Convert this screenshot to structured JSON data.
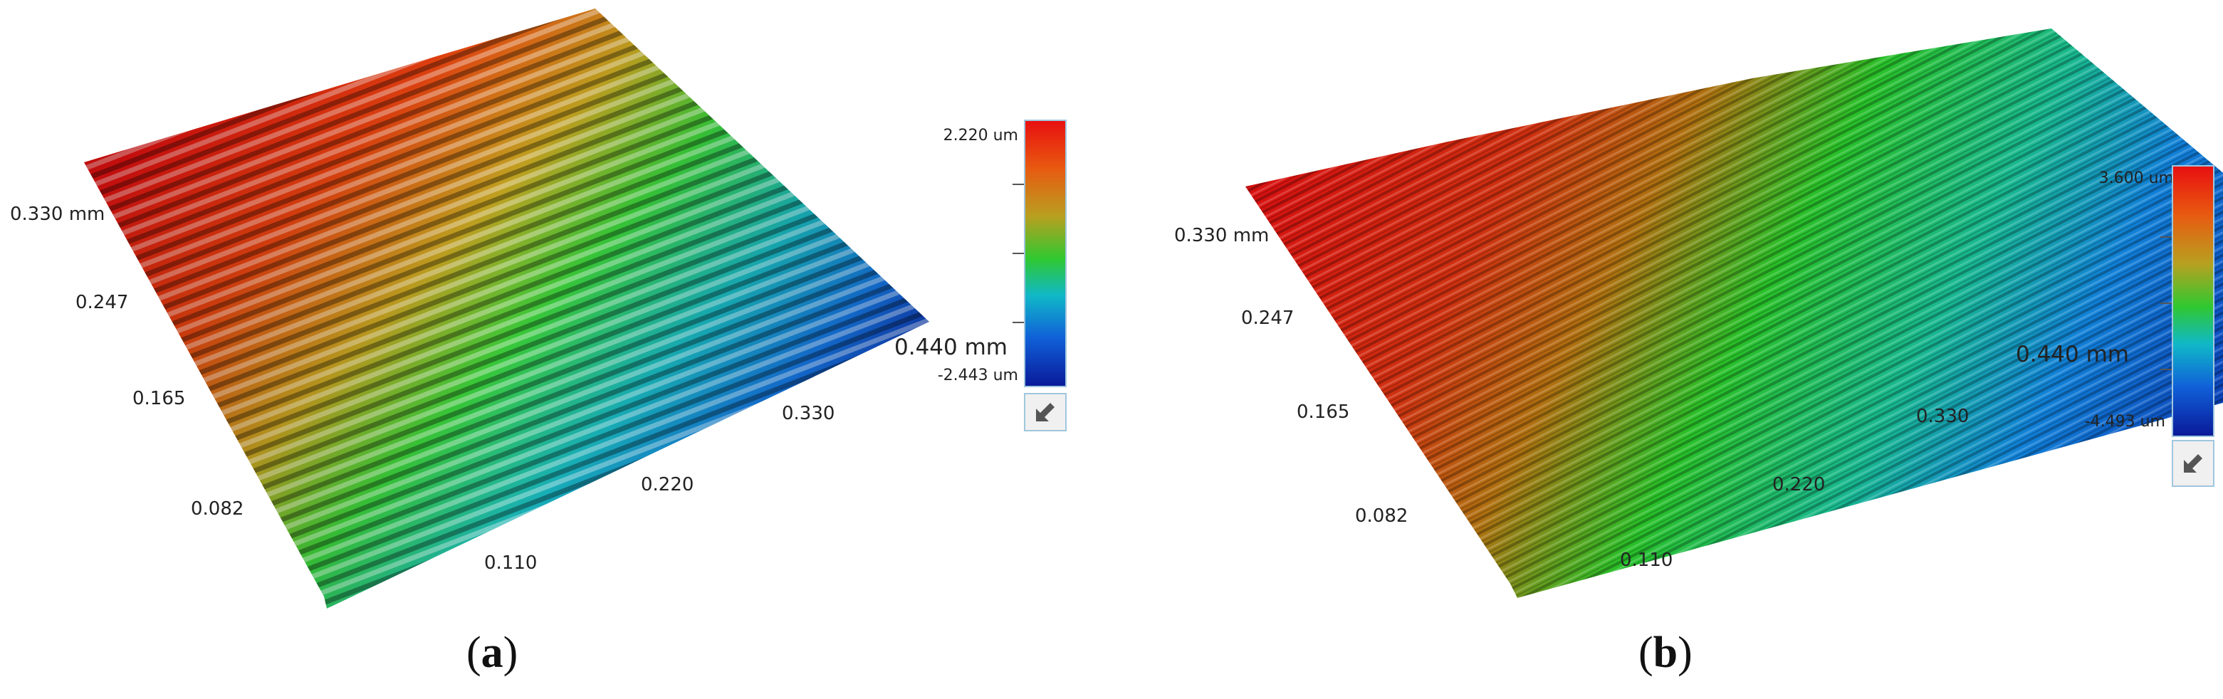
{
  "panel_a": {
    "caption_open": "(",
    "caption_letter": "a",
    "caption_close": ")",
    "y_axis_labels": [
      "0.330 mm",
      "0.247",
      "0.165",
      "0.082"
    ],
    "x_axis_labels": [
      "0.440 mm",
      "0.330",
      "0.220",
      "0.110"
    ],
    "scale_max": "2.220 um",
    "scale_min": "-2.443 um",
    "arrow_icon": "zoom-arrow-icon"
  },
  "panel_b": {
    "caption_open": "(",
    "caption_letter": "b",
    "caption_close": ")",
    "y_axis_labels": [
      "0.330 mm",
      "0.247",
      "0.165",
      "0.082"
    ],
    "x_axis_labels": [
      "0.440 mm",
      "0.330",
      "0.220",
      "0.110"
    ],
    "scale_max": "3.600 um",
    "scale_min": "-4.493 um",
    "arrow_icon": "zoom-arrow-icon"
  },
  "colors": {
    "high": "#e81010",
    "upper": "#e07a10",
    "mid": "#30c830",
    "lower": "#10a0d8",
    "low": "#0a1a9a",
    "scale_border": "#9fc6de"
  }
}
